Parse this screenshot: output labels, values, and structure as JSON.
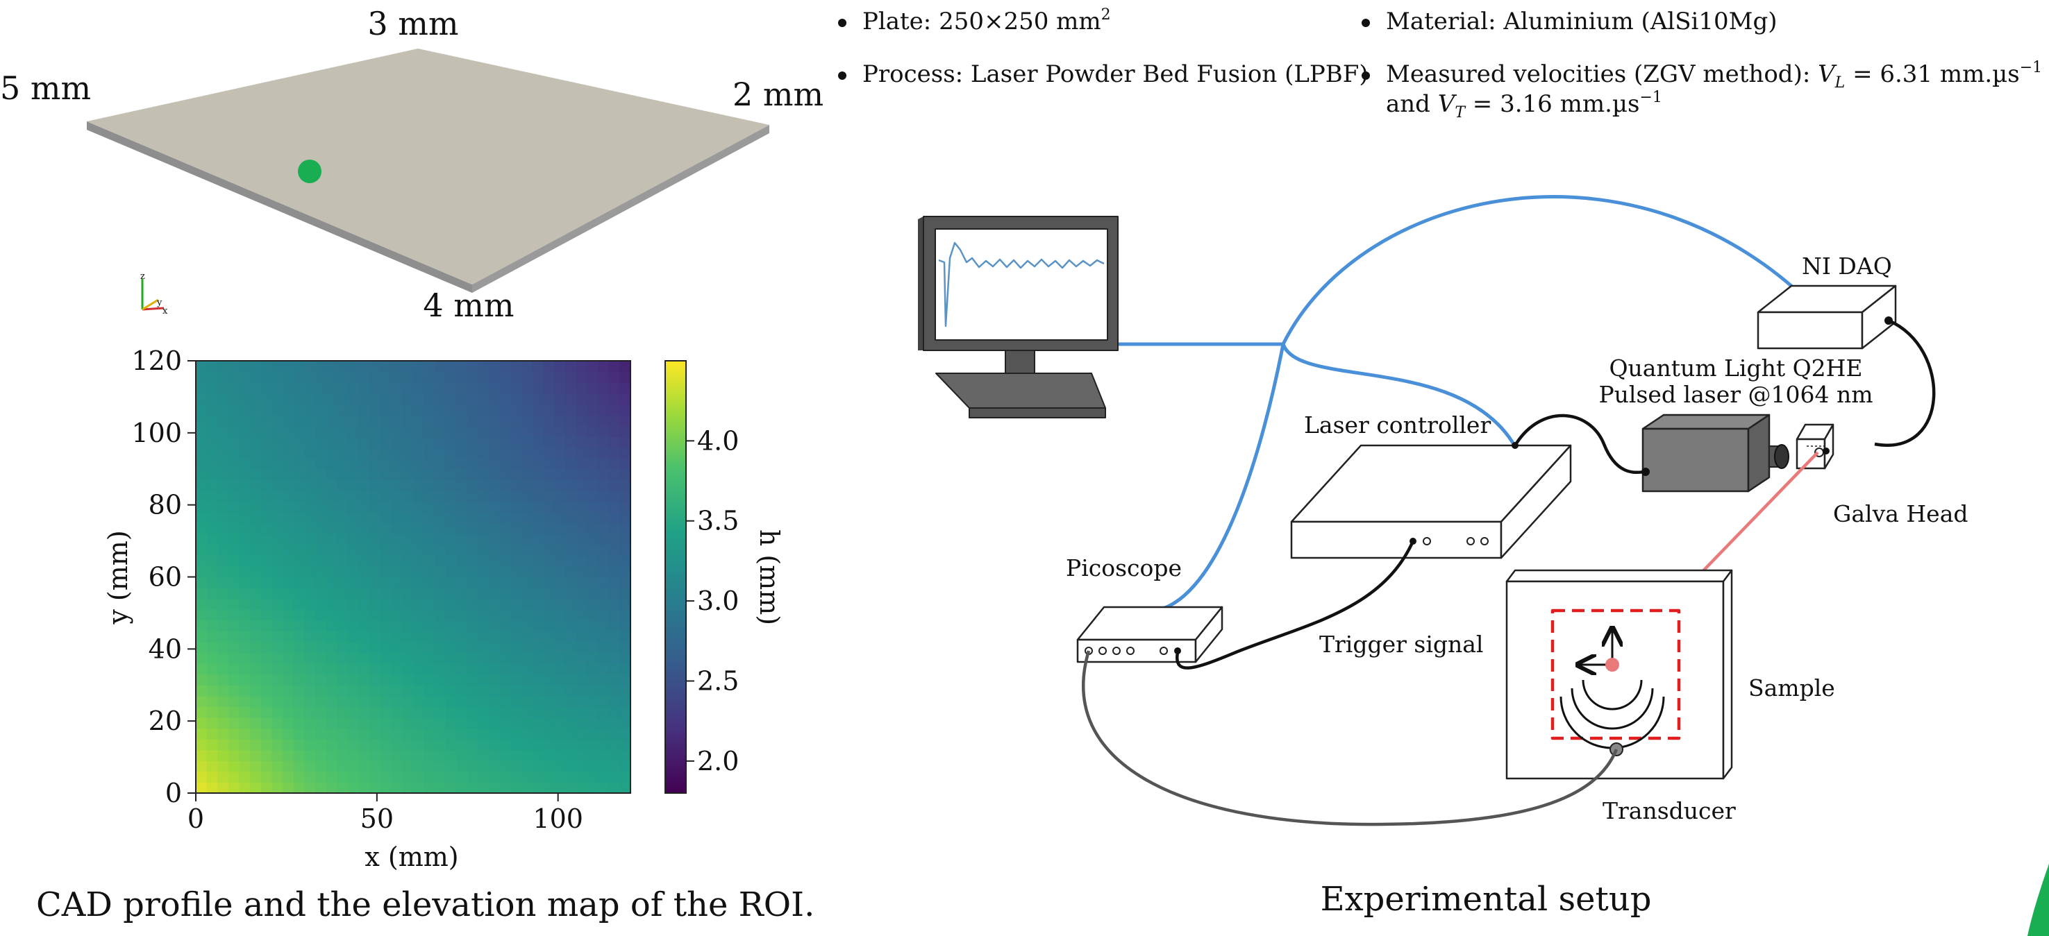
{
  "plate_3d": {
    "edge_labels": {
      "top": "3 mm",
      "left": "5 mm",
      "right": "2 mm",
      "bottom": "4 mm"
    },
    "surface_color": "#c3bfb3",
    "side_color": "#8e8e8e",
    "marker_color": "#1aae52",
    "axis_triad": {
      "x": "x",
      "y": "y",
      "z": "z"
    }
  },
  "heatmap": {
    "x_label": "x (mm)",
    "y_label": "y (mm)",
    "x_ticks": [
      "0",
      "50",
      "100"
    ],
    "y_ticks": [
      "0",
      "20",
      "40",
      "60",
      "80",
      "100",
      "120"
    ],
    "colorbar_label": "h (mm)",
    "colorbar_ticks": [
      "2.0",
      "2.5",
      "3.0",
      "3.5",
      "4.0"
    ],
    "colormap": "viridis"
  },
  "chart_data": {
    "type": "heatmap",
    "title": "",
    "xlabel": "x (mm)",
    "ylabel": "y (mm)",
    "xlim": [
      0,
      120
    ],
    "ylim": [
      0,
      120
    ],
    "colorbar": {
      "label": "h (mm)",
      "range": [
        1.8,
        4.5
      ]
    },
    "x": [
      0,
      30,
      60,
      90,
      120
    ],
    "y": [
      0,
      30,
      60,
      90,
      120
    ],
    "z": [
      [
        4.45,
        3.95,
        3.7,
        3.55,
        3.45
      ],
      [
        3.95,
        3.65,
        3.45,
        3.25,
        3.1
      ],
      [
        3.55,
        3.35,
        3.15,
        2.95,
        2.75
      ],
      [
        3.3,
        3.1,
        2.9,
        2.65,
        2.45
      ],
      [
        3.15,
        2.95,
        2.75,
        2.5,
        2.05
      ]
    ]
  },
  "left_caption": "CAD profile and the elevation map of the ROI.",
  "bullets_left": [
    {
      "main": "Plate: 250×250 mm",
      "sup": "2",
      "line2": ""
    },
    {
      "main": "Process: Laser Powder Bed Fusion (LPBF)",
      "sup": "",
      "line2": ""
    }
  ],
  "bullets_right": [
    {
      "main": "Material: Aluminium (AlSi10Mg)",
      "sup": "",
      "line2": ""
    },
    {
      "main": "Measured velocities (ZGV method): ",
      "vl_sym": "V",
      "vl_sub": "L",
      "vl_val": " = 6.31 mm.µs",
      "vl_sup": "−1",
      "line2_pre": "and ",
      "vt_sym": "V",
      "vt_sub": "T",
      "vt_val": " = 3.16 mm.µs",
      "vt_sup": "−1"
    }
  ],
  "setup": {
    "labels": {
      "ni_daq": "NI DAQ",
      "laser_title": "Quantum Light Q2HE",
      "laser_sub": "Pulsed laser @1064 nm",
      "laser_controller": "Laser controller",
      "galva_head": "Galva Head",
      "picoscope": "Picoscope",
      "trigger": "Trigger signal",
      "sample": "Sample",
      "transducer": "Transducer"
    },
    "cable_blue": "#4a90d9",
    "laser_beam": "#e87a7a",
    "roi_dash": "#e02020",
    "caption": "Experimental setup"
  },
  "corner_accent": "#1aae52"
}
